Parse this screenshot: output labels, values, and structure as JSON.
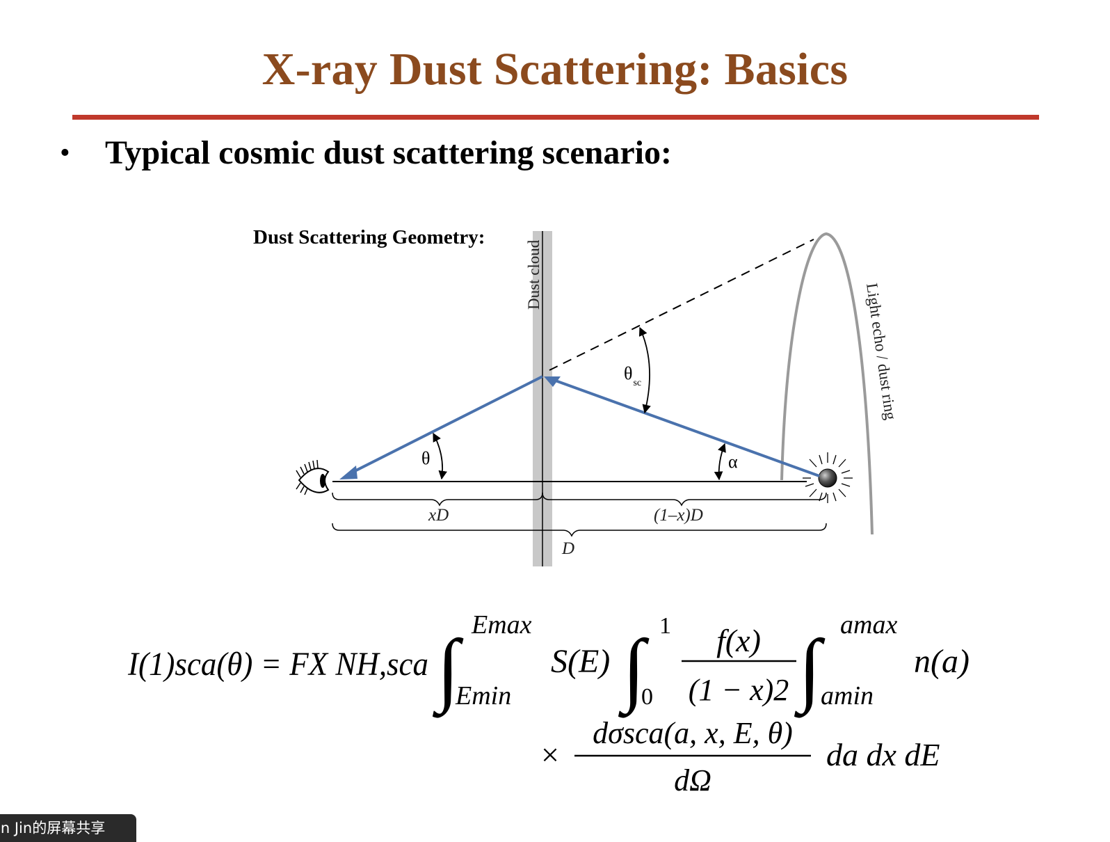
{
  "slide": {
    "title": "X-ray Dust Scattering: Basics",
    "bullet": "Typical cosmic dust scattering scenario:"
  },
  "diagram": {
    "heading": "Dust Scattering Geometry:",
    "dust_cloud_label": "Dust cloud",
    "light_echo_label": "Light echo / dust ring",
    "theta_sc_symbol": "θ",
    "theta_sc_sub": "sc",
    "theta_label": "θ",
    "alpha_label": "α",
    "xd_label": "xD",
    "one_minus_x_d_label": "(1–x)D",
    "d_label": "D"
  },
  "equation": {
    "lhs": "I(1)sca(θ) = FX NH,sca",
    "integral_e_upper": "Emax",
    "integral_e_lower": "Emin",
    "spectrum": "S(E)",
    "integral_x_upper": "1",
    "integral_x_lower": "0",
    "frac1_num": "f(x)",
    "frac1_den": "(1 − x)2",
    "integral_a_upper": "amax",
    "integral_a_lower": "amin",
    "size_dist": "n(a)",
    "times": "×",
    "frac2_num": "dσsca(a, x, E, θ)",
    "frac2_den": "dΩ",
    "differentials": "da dx dE"
  },
  "share_tag": "an Jin的屏幕共享",
  "colors": {
    "title": "#8b4a1e",
    "rule": "#c0392b",
    "ray": "#4a72ad",
    "dust_cloud": "#c8c8c8",
    "light_echo": "#9a9a9a"
  }
}
